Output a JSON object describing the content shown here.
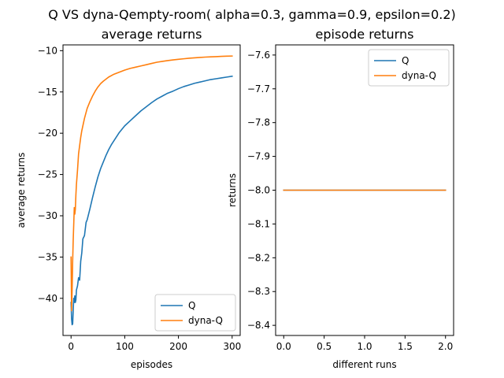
{
  "figure": {
    "suptitle": "Q VS dyna-Qempty-room( alpha=0.3, gamma=0.9, epsilon=0.2)"
  },
  "colors": {
    "Q": "#1f77b4",
    "dyna-Q": "#ff7f0e"
  },
  "chart_data": [
    {
      "type": "line",
      "title": "average returns",
      "xlabel": "episodes",
      "ylabel": "average returns",
      "xlim": [
        -15,
        315
      ],
      "ylim": [
        -44.5,
        -9.3
      ],
      "xticks": [
        0,
        100,
        200,
        300
      ],
      "yticks": [
        -40,
        -35,
        -30,
        -25,
        -20,
        -15,
        -10
      ],
      "grid": false,
      "legend_position": "lower right",
      "series": [
        {
          "name": "Q",
          "x": [
            0,
            1,
            2,
            3,
            4,
            5,
            6,
            7,
            8,
            9,
            10,
            12,
            14,
            16,
            18,
            20,
            22,
            25,
            28,
            30,
            35,
            40,
            45,
            50,
            55,
            60,
            65,
            70,
            75,
            80,
            90,
            100,
            110,
            120,
            130,
            140,
            150,
            160,
            170,
            180,
            190,
            200,
            210,
            220,
            230,
            240,
            250,
            260,
            270,
            280,
            290,
            300
          ],
          "y": [
            -40.5,
            -42.5,
            -43.2,
            -43.1,
            -41.5,
            -40.0,
            -40.5,
            -39.7,
            -40.5,
            -40.2,
            -39.0,
            -38.5,
            -37.5,
            -37.8,
            -35.5,
            -34.5,
            -32.8,
            -32.4,
            -30.8,
            -30.5,
            -29.2,
            -27.8,
            -26.5,
            -25.3,
            -24.3,
            -23.5,
            -22.7,
            -22.0,
            -21.4,
            -20.9,
            -19.9,
            -19.1,
            -18.5,
            -17.9,
            -17.3,
            -16.8,
            -16.3,
            -15.85,
            -15.5,
            -15.15,
            -14.9,
            -14.6,
            -14.35,
            -14.15,
            -13.95,
            -13.8,
            -13.65,
            -13.5,
            -13.4,
            -13.3,
            -13.2,
            -13.1
          ]
        },
        {
          "name": "dyna-Q",
          "x": [
            0,
            1,
            2,
            3,
            4,
            5,
            6,
            7,
            8,
            9,
            10,
            12,
            14,
            16,
            18,
            20,
            25,
            30,
            35,
            40,
            45,
            50,
            55,
            60,
            70,
            80,
            90,
            100,
            110,
            120,
            130,
            140,
            150,
            160,
            170,
            180,
            190,
            200,
            210,
            220,
            230,
            240,
            250,
            260,
            270,
            280,
            290,
            300
          ],
          "y": [
            -35.0,
            -41.5,
            -39.0,
            -35.5,
            -33.0,
            -31.0,
            -29.0,
            -29.8,
            -29.2,
            -27.5,
            -26.2,
            -24.5,
            -22.5,
            -21.5,
            -20.5,
            -19.7,
            -18.2,
            -17.0,
            -16.2,
            -15.5,
            -14.9,
            -14.4,
            -14.0,
            -13.7,
            -13.2,
            -12.85,
            -12.6,
            -12.35,
            -12.15,
            -12.0,
            -11.85,
            -11.7,
            -11.55,
            -11.4,
            -11.3,
            -11.2,
            -11.12,
            -11.05,
            -10.98,
            -10.92,
            -10.87,
            -10.82,
            -10.78,
            -10.75,
            -10.72,
            -10.69,
            -10.67,
            -10.65
          ]
        }
      ]
    },
    {
      "type": "line",
      "title": "episode returns",
      "xlabel": "different runs",
      "ylabel": "returns",
      "xlim": [
        -0.1,
        2.1
      ],
      "ylim": [
        -8.43,
        -7.57
      ],
      "xticks": [
        0.0,
        0.5,
        1.0,
        1.5,
        2.0
      ],
      "yticks": [
        -8.4,
        -8.3,
        -8.2,
        -8.1,
        -8.0,
        -7.9,
        -7.8,
        -7.7,
        -7.6
      ],
      "grid": false,
      "legend_position": "upper right",
      "series": [
        {
          "name": "Q",
          "x": [
            0,
            1,
            2
          ],
          "y": [
            -8.0,
            -8.0,
            -8.0
          ]
        },
        {
          "name": "dyna-Q",
          "x": [
            0,
            1,
            2
          ],
          "y": [
            -8.0,
            -8.0,
            -8.0
          ]
        }
      ]
    }
  ]
}
